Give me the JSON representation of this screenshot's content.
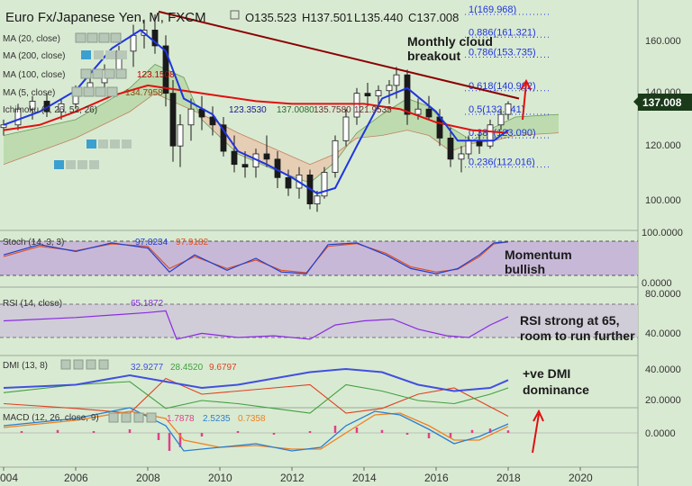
{
  "header": {
    "symbol": "Euro Fx/Japanese Yen, M, FXCM",
    "ohlc": {
      "open": "O135.523",
      "high": "H137.501",
      "low": "L135.440",
      "close": "C137.008"
    }
  },
  "colors": {
    "background": "#d9ead2",
    "candle": "#1a1a1a",
    "ma20": "#1f35e0",
    "ma100": "#e01010",
    "trendline": "#8b0000",
    "cloud_bull": "#b7d8a8",
    "cloud_bear": "#e8c9b0",
    "fib": "#1f35e0",
    "stoch_band": "#c8b8d8",
    "rsi_band": "#d0ccd8",
    "price_badge": "#1a3a1a",
    "arrow": "#e01010",
    "rsi_line": "#8a2be2",
    "stoch_k": "#2040d0",
    "stoch_d": "#e05020",
    "dmi_adx": "#4050e0",
    "dmi_plus": "#40a040",
    "dmi_minus": "#e04020",
    "macd_line": "#2a7fd0",
    "signal_line": "#f08020",
    "hist": "#e0408a"
  },
  "indicators": {
    "ma20": {
      "label": "MA (20, close)",
      "value": ""
    },
    "ma200": {
      "label": "MA (200, close)",
      "value": ""
    },
    "ma100": {
      "label": "MA (100, close)",
      "value": "123.1508"
    },
    "ma5": {
      "label": "MA (5, close)",
      "value": "134.7958"
    },
    "ichimoku": {
      "label": "Ichimoku (9, 26, 52, 26)",
      "values": [
        "123.3530",
        "137.0080",
        "135.7580",
        "121.9535"
      ]
    }
  },
  "price_axis": {
    "ticks": [
      "160.000",
      "140.000",
      "120.000",
      "100.000"
    ],
    "current": "137.008"
  },
  "fib_levels": [
    {
      "label": "1(169.968)",
      "price": 169.968
    },
    {
      "label": "0.886(161.321)",
      "price": 161.321
    },
    {
      "label": "0.786(153.735)",
      "price": 153.735
    },
    {
      "label": "0.618(140.992)",
      "price": 140.992
    },
    {
      "label": "0.5(132.041)",
      "price": 132.041
    },
    {
      "label": "0.382(123.090)",
      "price": 123.09
    },
    {
      "label": "0.236(112.016)",
      "price": 112.016
    }
  ],
  "annotations": {
    "cloud_line1": "Monthly cloud",
    "cloud_line2": "breakout",
    "momentum_line1": "Momentum",
    "momentum_line2": "bullish",
    "rsi_line1": "RSI strong at 65,",
    "rsi_line2": "room to run further",
    "dmi_line1": "+ve DMI",
    "dmi_line2": "dominance"
  },
  "stoch": {
    "label": "Stoch (14, 3, 3)",
    "k": "97.8234",
    "d": "97.9182",
    "ticks": [
      "100.0000",
      "0.0000"
    ]
  },
  "rsi": {
    "label": "RSI (14, close)",
    "value": "65.1872",
    "ticks": [
      "80.0000",
      "40.0000"
    ]
  },
  "dmi": {
    "label": "DMI (13, 8)",
    "values": [
      "32.9277",
      "28.4520",
      "9.6797"
    ],
    "ticks": [
      "40.0000",
      "20.0000"
    ]
  },
  "macd": {
    "label": "MACD (12, 26, close, 9)",
    "values": [
      "1.7878",
      "2.5235",
      "0.7358"
    ],
    "ticks": [
      "0.0000"
    ]
  },
  "x_axis": {
    "labels": [
      "004",
      "2006",
      "2008",
      "2010",
      "2012",
      "2014",
      "2016",
      "2018",
      "2020"
    ]
  },
  "chart_data": {
    "type": "line",
    "title": "Euro Fx/Japanese Yen, M, FXCM",
    "x_range": [
      2004.0,
      2021.6
    ],
    "price_range": [
      90,
      172
    ],
    "last_close": 137.008,
    "ma20": [
      [
        2004.0,
        128
      ],
      [
        2005.0,
        133
      ],
      [
        2006.0,
        141
      ],
      [
        2007.0,
        157
      ],
      [
        2007.8,
        164
      ],
      [
        2008.5,
        156
      ],
      [
        2009.0,
        138
      ],
      [
        2009.8,
        132
      ],
      [
        2010.5,
        118
      ],
      [
        2011.3,
        113
      ],
      [
        2012.0,
        108
      ],
      [
        2012.7,
        102
      ],
      [
        2013.2,
        104
      ],
      [
        2013.8,
        120
      ],
      [
        2014.5,
        138
      ],
      [
        2015.2,
        142
      ],
      [
        2016.0,
        133
      ],
      [
        2016.6,
        122
      ],
      [
        2017.2,
        122
      ],
      [
        2017.6,
        122
      ],
      [
        2018.0,
        126
      ]
    ],
    "ma100": [
      [
        2004.0,
        126
      ],
      [
        2005.0,
        128
      ],
      [
        2006.0,
        133
      ],
      [
        2007.0,
        139
      ],
      [
        2008.0,
        143
      ],
      [
        2009.0,
        141
      ],
      [
        2010.0,
        139
      ],
      [
        2011.0,
        137
      ],
      [
        2012.0,
        136
      ],
      [
        2013.0,
        136
      ],
      [
        2014.0,
        136
      ],
      [
        2015.0,
        134
      ],
      [
        2016.0,
        129
      ],
      [
        2017.0,
        126
      ],
      [
        2018.0,
        125
      ]
    ],
    "trendline": [
      [
        2008.3,
        171
      ],
      [
        2018.3,
        138
      ]
    ],
    "ichimoku_cloud": {
      "span_a": [
        [
          2004.0,
          124
        ],
        [
          2006.0,
          130
        ],
        [
          2007.5,
          142
        ],
        [
          2008.2,
          151
        ],
        [
          2009.0,
          146
        ],
        [
          2009.5,
          130
        ],
        [
          2010.5,
          117
        ],
        [
          2011.5,
          111
        ],
        [
          2012.5,
          106
        ],
        [
          2013.2,
          114
        ],
        [
          2013.8,
          125
        ],
        [
          2014.5,
          132
        ],
        [
          2015.2,
          138
        ],
        [
          2015.8,
          135
        ],
        [
          2016.4,
          127
        ],
        [
          2017.0,
          122
        ],
        [
          2017.6,
          127
        ],
        [
          2018.2,
          131
        ],
        [
          2019.4,
          132
        ]
      ],
      "span_b": [
        [
          2004.0,
          113
        ],
        [
          2006.0,
          123
        ],
        [
          2007.5,
          133
        ],
        [
          2008.2,
          140
        ],
        [
          2009.0,
          135
        ],
        [
          2009.5,
          132
        ],
        [
          2010.5,
          125
        ],
        [
          2011.5,
          119
        ],
        [
          2012.5,
          113
        ],
        [
          2013.2,
          117
        ],
        [
          2013.8,
          123
        ],
        [
          2014.5,
          124
        ],
        [
          2015.2,
          126
        ],
        [
          2015.8,
          124
        ],
        [
          2016.4,
          118
        ],
        [
          2017.0,
          121
        ],
        [
          2017.6,
          122
        ],
        [
          2018.2,
          124
        ],
        [
          2019.4,
          125
        ]
      ]
    },
    "candles_ohlc": [
      [
        2004.0,
        127,
        130,
        124,
        128
      ],
      [
        2004.4,
        128,
        136,
        126,
        134
      ],
      [
        2004.8,
        134,
        139,
        130,
        137
      ],
      [
        2005.2,
        137,
        140,
        131,
        133
      ],
      [
        2005.6,
        133,
        138,
        130,
        136
      ],
      [
        2006.0,
        136,
        143,
        134,
        141
      ],
      [
        2006.4,
        141,
        146,
        139,
        144
      ],
      [
        2006.8,
        144,
        151,
        142,
        149
      ],
      [
        2007.2,
        149,
        158,
        147,
        156
      ],
      [
        2007.6,
        156,
        166,
        150,
        162
      ],
      [
        2007.9,
        162,
        168,
        157,
        164
      ],
      [
        2008.2,
        164,
        170,
        155,
        158
      ],
      [
        2008.5,
        158,
        162,
        135,
        140
      ],
      [
        2008.7,
        140,
        145,
        114,
        120
      ],
      [
        2008.9,
        120,
        132,
        112,
        128
      ],
      [
        2009.2,
        128,
        138,
        122,
        134
      ],
      [
        2009.5,
        134,
        139,
        126,
        131
      ],
      [
        2009.8,
        131,
        135,
        124,
        128
      ],
      [
        2010.1,
        128,
        131,
        116,
        118
      ],
      [
        2010.4,
        118,
        124,
        110,
        113
      ],
      [
        2010.7,
        113,
        118,
        108,
        112
      ],
      [
        2011.0,
        112,
        119,
        108,
        117
      ],
      [
        2011.3,
        117,
        124,
        112,
        115
      ],
      [
        2011.6,
        115,
        118,
        104,
        108
      ],
      [
        2011.9,
        108,
        111,
        101,
        104
      ],
      [
        2012.2,
        104,
        112,
        100,
        109
      ],
      [
        2012.5,
        109,
        111,
        96,
        98
      ],
      [
        2012.7,
        98,
        103,
        95,
        101
      ],
      [
        2012.9,
        101,
        112,
        100,
        110
      ],
      [
        2013.2,
        110,
        124,
        108,
        122
      ],
      [
        2013.5,
        122,
        134,
        120,
        131
      ],
      [
        2013.8,
        131,
        142,
        128,
        140
      ],
      [
        2014.1,
        140,
        144,
        135,
        139
      ],
      [
        2014.4,
        139,
        143,
        134,
        141
      ],
      [
        2014.7,
        141,
        145,
        136,
        143
      ],
      [
        2014.9,
        143,
        150,
        138,
        147
      ],
      [
        2015.2,
        147,
        149,
        128,
        132
      ],
      [
        2015.5,
        132,
        138,
        130,
        134
      ],
      [
        2015.8,
        134,
        139,
        130,
        131
      ],
      [
        2016.1,
        131,
        134,
        120,
        123
      ],
      [
        2016.4,
        123,
        127,
        112,
        115
      ],
      [
        2016.7,
        115,
        120,
        110,
        117
      ],
      [
        2016.9,
        117,
        124,
        115,
        122
      ],
      [
        2017.2,
        122,
        126,
        117,
        120
      ],
      [
        2017.5,
        120,
        130,
        119,
        128
      ],
      [
        2017.8,
        128,
        134,
        126,
        132
      ],
      [
        2018.0,
        132,
        137,
        130,
        136
      ]
    ],
    "rsi_series": [
      [
        2004.0,
        60
      ],
      [
        2006.0,
        64
      ],
      [
        2008.0,
        70
      ],
      [
        2008.5,
        72
      ],
      [
        2008.8,
        38
      ],
      [
        2009.5,
        45
      ],
      [
        2010.5,
        40
      ],
      [
        2011.5,
        42
      ],
      [
        2012.5,
        38
      ],
      [
        2013.2,
        55
      ],
      [
        2014.0,
        60
      ],
      [
        2014.8,
        62
      ],
      [
        2015.5,
        50
      ],
      [
        2016.3,
        42
      ],
      [
        2016.9,
        40
      ],
      [
        2017.5,
        55
      ],
      [
        2018.0,
        65
      ]
    ],
    "stoch_k_series": [
      [
        2004.0,
        60
      ],
      [
        2005.0,
        90
      ],
      [
        2006.0,
        70
      ],
      [
        2007.0,
        95
      ],
      [
        2008.0,
        80
      ],
      [
        2008.6,
        10
      ],
      [
        2009.3,
        60
      ],
      [
        2010.2,
        15
      ],
      [
        2011.0,
        50
      ],
      [
        2011.7,
        10
      ],
      [
        2012.4,
        5
      ],
      [
        2013.0,
        90
      ],
      [
        2013.8,
        95
      ],
      [
        2014.6,
        60
      ],
      [
        2015.3,
        20
      ],
      [
        2016.0,
        5
      ],
      [
        2016.6,
        20
      ],
      [
        2017.2,
        60
      ],
      [
        2017.6,
        95
      ],
      [
        2018.0,
        98
      ]
    ],
    "stoch_d_series": [
      [
        2004.0,
        55
      ],
      [
        2005.0,
        85
      ],
      [
        2006.0,
        72
      ],
      [
        2007.0,
        92
      ],
      [
        2008.0,
        85
      ],
      [
        2008.6,
        20
      ],
      [
        2009.3,
        55
      ],
      [
        2010.2,
        20
      ],
      [
        2011.0,
        45
      ],
      [
        2011.7,
        15
      ],
      [
        2012.4,
        8
      ],
      [
        2013.0,
        85
      ],
      [
        2013.8,
        93
      ],
      [
        2014.6,
        65
      ],
      [
        2015.3,
        25
      ],
      [
        2016.0,
        10
      ],
      [
        2016.6,
        18
      ],
      [
        2017.2,
        55
      ],
      [
        2017.6,
        92
      ],
      [
        2018.0,
        98
      ]
    ],
    "adx_series": [
      [
        2004.0,
        28
      ],
      [
        2006.0,
        30
      ],
      [
        2007.5,
        36
      ],
      [
        2008.5,
        32
      ],
      [
        2009.5,
        28
      ],
      [
        2010.5,
        30
      ],
      [
        2011.5,
        34
      ],
      [
        2012.5,
        38
      ],
      [
        2013.5,
        40
      ],
      [
        2014.5,
        38
      ],
      [
        2015.5,
        30
      ],
      [
        2016.5,
        26
      ],
      [
        2017.5,
        28
      ],
      [
        2018.0,
        33
      ]
    ],
    "di_plus_series": [
      [
        2004.0,
        25
      ],
      [
        2006.0,
        30
      ],
      [
        2007.5,
        32
      ],
      [
        2008.5,
        15
      ],
      [
        2009.5,
        20
      ],
      [
        2010.5,
        18
      ],
      [
        2011.5,
        15
      ],
      [
        2012.5,
        12
      ],
      [
        2013.5,
        30
      ],
      [
        2014.5,
        26
      ],
      [
        2015.5,
        20
      ],
      [
        2016.5,
        18
      ],
      [
        2017.5,
        24
      ],
      [
        2018.0,
        28
      ]
    ],
    "di_minus_series": [
      [
        2004.0,
        18
      ],
      [
        2006.0,
        15
      ],
      [
        2007.5,
        12
      ],
      [
        2008.5,
        34
      ],
      [
        2009.5,
        24
      ],
      [
        2010.5,
        26
      ],
      [
        2011.5,
        28
      ],
      [
        2012.5,
        30
      ],
      [
        2013.5,
        12
      ],
      [
        2014.5,
        15
      ],
      [
        2015.5,
        24
      ],
      [
        2016.5,
        28
      ],
      [
        2017.5,
        16
      ],
      [
        2018.0,
        10
      ]
    ],
    "macd_series": [
      [
        2004.0,
        2
      ],
      [
        2006.0,
        4
      ],
      [
        2007.5,
        7
      ],
      [
        2008.5,
        2
      ],
      [
        2009.0,
        -5
      ],
      [
        2010.0,
        -4
      ],
      [
        2011.0,
        -3
      ],
      [
        2012.0,
        -5
      ],
      [
        2012.8,
        -4
      ],
      [
        2013.5,
        2
      ],
      [
        2014.3,
        6
      ],
      [
        2015.0,
        5
      ],
      [
        2015.8,
        1
      ],
      [
        2016.5,
        -3
      ],
      [
        2017.2,
        -1
      ],
      [
        2018.0,
        2.5
      ]
    ],
    "signal_series": [
      [
        2004.0,
        1.5
      ],
      [
        2006.0,
        3.5
      ],
      [
        2007.5,
        6
      ],
      [
        2008.5,
        4
      ],
      [
        2009.0,
        -2
      ],
      [
        2010.0,
        -4
      ],
      [
        2011.0,
        -3.5
      ],
      [
        2012.0,
        -4.5
      ],
      [
        2012.8,
        -4.5
      ],
      [
        2013.5,
        0
      ],
      [
        2014.3,
        5
      ],
      [
        2015.0,
        5.5
      ],
      [
        2015.8,
        2
      ],
      [
        2016.5,
        -2
      ],
      [
        2017.2,
        -2
      ],
      [
        2018.0,
        1.8
      ]
    ],
    "hist_series": [
      [
        2004.5,
        0.5
      ],
      [
        2005.5,
        0.8
      ],
      [
        2006.5,
        0.5
      ],
      [
        2007.5,
        1
      ],
      [
        2008.3,
        -2
      ],
      [
        2008.6,
        -5
      ],
      [
        2008.9,
        -4
      ],
      [
        2009.5,
        -1
      ],
      [
        2010.5,
        0.5
      ],
      [
        2011.5,
        -0.5
      ],
      [
        2012.5,
        0.5
      ],
      [
        2013.2,
        2
      ],
      [
        2013.8,
        1.5
      ],
      [
        2014.5,
        0.8
      ],
      [
        2015.2,
        -0.5
      ],
      [
        2015.8,
        -1.5
      ],
      [
        2016.4,
        -1.5
      ],
      [
        2017.0,
        0.8
      ],
      [
        2017.5,
        1.2
      ],
      [
        2018.0,
        0.7
      ]
    ]
  }
}
